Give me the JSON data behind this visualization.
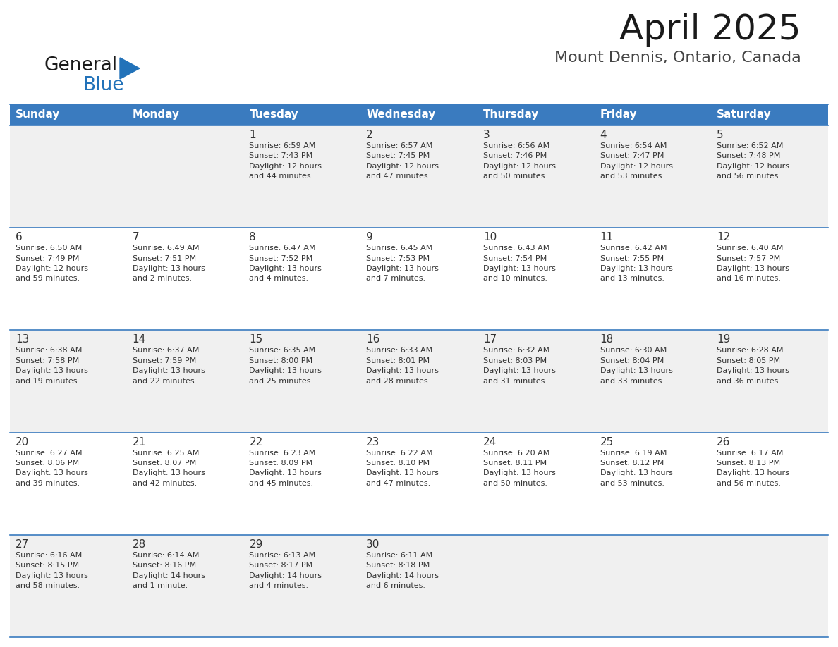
{
  "title": "April 2025",
  "subtitle": "Mount Dennis, Ontario, Canada",
  "header_bg_color": "#3a7bbf",
  "header_text_color": "#ffffff",
  "row_bg_even": "#f0f0f0",
  "row_bg_odd": "#ffffff",
  "day_headers": [
    "Sunday",
    "Monday",
    "Tuesday",
    "Wednesday",
    "Thursday",
    "Friday",
    "Saturday"
  ],
  "border_color": "#3a7bbf",
  "text_color": "#333333",
  "title_fontsize": 36,
  "subtitle_fontsize": 16,
  "header_fontsize": 11,
  "day_num_fontsize": 11,
  "info_fontsize": 8,
  "logo_general_color": "#1a1a1a",
  "logo_blue_color": "#2272b9",
  "weeks": [
    [
      {
        "day": "",
        "info": ""
      },
      {
        "day": "",
        "info": ""
      },
      {
        "day": "1",
        "info": "Sunrise: 6:59 AM\nSunset: 7:43 PM\nDaylight: 12 hours\nand 44 minutes."
      },
      {
        "day": "2",
        "info": "Sunrise: 6:57 AM\nSunset: 7:45 PM\nDaylight: 12 hours\nand 47 minutes."
      },
      {
        "day": "3",
        "info": "Sunrise: 6:56 AM\nSunset: 7:46 PM\nDaylight: 12 hours\nand 50 minutes."
      },
      {
        "day": "4",
        "info": "Sunrise: 6:54 AM\nSunset: 7:47 PM\nDaylight: 12 hours\nand 53 minutes."
      },
      {
        "day": "5",
        "info": "Sunrise: 6:52 AM\nSunset: 7:48 PM\nDaylight: 12 hours\nand 56 minutes."
      }
    ],
    [
      {
        "day": "6",
        "info": "Sunrise: 6:50 AM\nSunset: 7:49 PM\nDaylight: 12 hours\nand 59 minutes."
      },
      {
        "day": "7",
        "info": "Sunrise: 6:49 AM\nSunset: 7:51 PM\nDaylight: 13 hours\nand 2 minutes."
      },
      {
        "day": "8",
        "info": "Sunrise: 6:47 AM\nSunset: 7:52 PM\nDaylight: 13 hours\nand 4 minutes."
      },
      {
        "day": "9",
        "info": "Sunrise: 6:45 AM\nSunset: 7:53 PM\nDaylight: 13 hours\nand 7 minutes."
      },
      {
        "day": "10",
        "info": "Sunrise: 6:43 AM\nSunset: 7:54 PM\nDaylight: 13 hours\nand 10 minutes."
      },
      {
        "day": "11",
        "info": "Sunrise: 6:42 AM\nSunset: 7:55 PM\nDaylight: 13 hours\nand 13 minutes."
      },
      {
        "day": "12",
        "info": "Sunrise: 6:40 AM\nSunset: 7:57 PM\nDaylight: 13 hours\nand 16 minutes."
      }
    ],
    [
      {
        "day": "13",
        "info": "Sunrise: 6:38 AM\nSunset: 7:58 PM\nDaylight: 13 hours\nand 19 minutes."
      },
      {
        "day": "14",
        "info": "Sunrise: 6:37 AM\nSunset: 7:59 PM\nDaylight: 13 hours\nand 22 minutes."
      },
      {
        "day": "15",
        "info": "Sunrise: 6:35 AM\nSunset: 8:00 PM\nDaylight: 13 hours\nand 25 minutes."
      },
      {
        "day": "16",
        "info": "Sunrise: 6:33 AM\nSunset: 8:01 PM\nDaylight: 13 hours\nand 28 minutes."
      },
      {
        "day": "17",
        "info": "Sunrise: 6:32 AM\nSunset: 8:03 PM\nDaylight: 13 hours\nand 31 minutes."
      },
      {
        "day": "18",
        "info": "Sunrise: 6:30 AM\nSunset: 8:04 PM\nDaylight: 13 hours\nand 33 minutes."
      },
      {
        "day": "19",
        "info": "Sunrise: 6:28 AM\nSunset: 8:05 PM\nDaylight: 13 hours\nand 36 minutes."
      }
    ],
    [
      {
        "day": "20",
        "info": "Sunrise: 6:27 AM\nSunset: 8:06 PM\nDaylight: 13 hours\nand 39 minutes."
      },
      {
        "day": "21",
        "info": "Sunrise: 6:25 AM\nSunset: 8:07 PM\nDaylight: 13 hours\nand 42 minutes."
      },
      {
        "day": "22",
        "info": "Sunrise: 6:23 AM\nSunset: 8:09 PM\nDaylight: 13 hours\nand 45 minutes."
      },
      {
        "day": "23",
        "info": "Sunrise: 6:22 AM\nSunset: 8:10 PM\nDaylight: 13 hours\nand 47 minutes."
      },
      {
        "day": "24",
        "info": "Sunrise: 6:20 AM\nSunset: 8:11 PM\nDaylight: 13 hours\nand 50 minutes."
      },
      {
        "day": "25",
        "info": "Sunrise: 6:19 AM\nSunset: 8:12 PM\nDaylight: 13 hours\nand 53 minutes."
      },
      {
        "day": "26",
        "info": "Sunrise: 6:17 AM\nSunset: 8:13 PM\nDaylight: 13 hours\nand 56 minutes."
      }
    ],
    [
      {
        "day": "27",
        "info": "Sunrise: 6:16 AM\nSunset: 8:15 PM\nDaylight: 13 hours\nand 58 minutes."
      },
      {
        "day": "28",
        "info": "Sunrise: 6:14 AM\nSunset: 8:16 PM\nDaylight: 14 hours\nand 1 minute."
      },
      {
        "day": "29",
        "info": "Sunrise: 6:13 AM\nSunset: 8:17 PM\nDaylight: 14 hours\nand 4 minutes."
      },
      {
        "day": "30",
        "info": "Sunrise: 6:11 AM\nSunset: 8:18 PM\nDaylight: 14 hours\nand 6 minutes."
      },
      {
        "day": "",
        "info": ""
      },
      {
        "day": "",
        "info": ""
      },
      {
        "day": "",
        "info": ""
      }
    ]
  ]
}
